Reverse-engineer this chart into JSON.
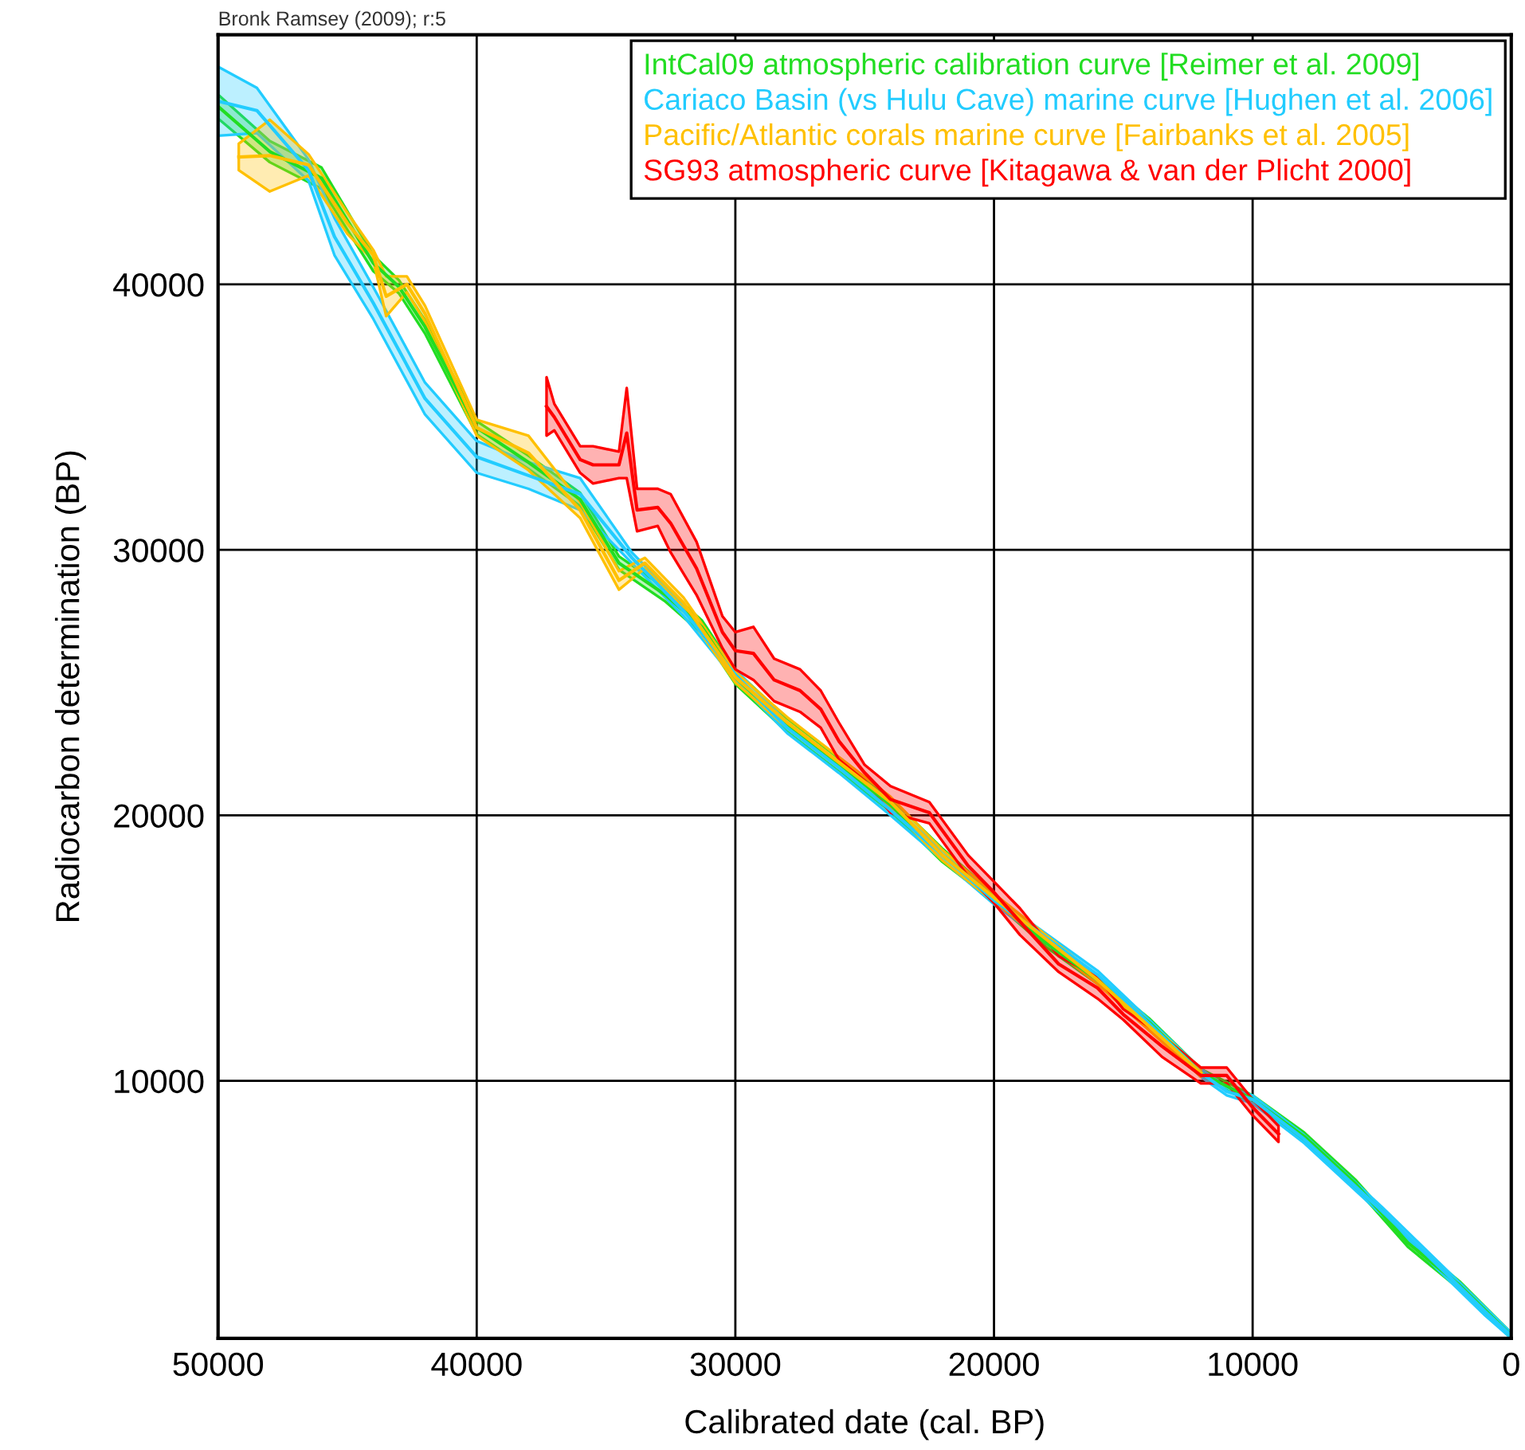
{
  "chart_data": {
    "type": "line",
    "xlabel": "Calibrated date (cal. BP)",
    "ylabel": "Radiocarbon determination (BP)",
    "annotations": [
      "Bronk Ramsey (2009); r:5"
    ],
    "xlim": [
      50000,
      0
    ],
    "ylim": [
      300,
      49400
    ],
    "xticks": [
      50000,
      40000,
      30000,
      20000,
      10000,
      0
    ],
    "yticks": [
      10000,
      20000,
      30000,
      40000
    ],
    "grid": true,
    "legend": "top right",
    "marker": "none",
    "line_style": "solid",
    "series": [
      {
        "name": "IntCal09 atmospheric calibration curve [Reimer et al. 2009]",
        "color": "#22dd22",
        "x": [
          50000,
          48000,
          46000,
          44000,
          43000,
          42000,
          40000,
          38000,
          36000,
          34500,
          32700,
          31300,
          30000,
          28000,
          26000,
          24000,
          22000,
          20000,
          18000,
          16000,
          14000,
          12000,
          10000,
          8000,
          6000,
          4000,
          2000,
          0
        ],
        "values": [
          46700,
          45000,
          44000,
          40800,
          39900,
          38400,
          34600,
          33300,
          31900,
          29500,
          28300,
          27100,
          25200,
          23400,
          21900,
          20400,
          18500,
          16900,
          15200,
          13800,
          12200,
          10300,
          9300,
          7900,
          6100,
          3900,
          2300,
          400
        ],
        "lower": [
          46250,
          44600,
          43600,
          40500,
          39650,
          38150,
          34350,
          33050,
          31650,
          29250,
          28050,
          26850,
          24950,
          23150,
          21650,
          20150,
          18250,
          16750,
          15050,
          13650,
          12050,
          10150,
          9150,
          7750,
          5950,
          3750,
          2150,
          300
        ],
        "upper": [
          47150,
          45400,
          44400,
          41100,
          40150,
          38650,
          34850,
          33550,
          32150,
          29750,
          28550,
          27350,
          25450,
          23650,
          22150,
          20650,
          18750,
          17050,
          15350,
          13950,
          12350,
          10450,
          9450,
          8050,
          6250,
          4050,
          2450,
          500
        ]
      },
      {
        "name": "Cariaco Basin (vs Hulu Cave) marine curve [Hughen et al. 2006]",
        "color": "#22ccff",
        "x": [
          50000,
          48500,
          46500,
          45500,
          44000,
          42000,
          40000,
          38000,
          36000,
          34000,
          32000,
          30000,
          28000,
          26000,
          24000,
          20000,
          16000,
          12000,
          11000,
          10000,
          8000,
          5000,
          3000,
          1000,
          0
        ],
        "values": [
          46900,
          46550,
          44300,
          41800,
          39300,
          35700,
          33500,
          32800,
          32100,
          29700,
          27700,
          25300,
          23300,
          21800,
          20200,
          16800,
          14000,
          10300,
          9600,
          9300,
          7800,
          5100,
          3200,
          1300,
          400
        ],
        "lower": [
          45600,
          45700,
          43900,
          41100,
          38700,
          35100,
          32900,
          32300,
          31500,
          29500,
          27500,
          25100,
          23100,
          21600,
          20000,
          16650,
          13850,
          10150,
          9450,
          9150,
          7650,
          4950,
          3050,
          1150,
          300
        ],
        "upper": [
          48200,
          47400,
          44700,
          42500,
          39900,
          36300,
          34100,
          33300,
          32700,
          29900,
          27900,
          25500,
          23500,
          22000,
          20400,
          16950,
          14150,
          10450,
          9750,
          9450,
          7950,
          5250,
          3350,
          1450,
          500
        ]
      },
      {
        "name": "Pacific/Atlantic corals marine curve [Fairbanks et al. 2005]",
        "color": "#ffc000",
        "x": [
          49200,
          48000,
          46500,
          45000,
          44000,
          43500,
          42700,
          42000,
          40000,
          38000,
          36000,
          34500,
          33500,
          32000,
          30000,
          28000,
          26000,
          24000,
          22000,
          20000,
          16000,
          12000
        ],
        "values": [
          44800,
          44850,
          44500,
          42300,
          41100,
          39550,
          40000,
          38900,
          34600,
          33650,
          31500,
          28850,
          29500,
          28000,
          25200,
          23500,
          22000,
          20500,
          18500,
          16900,
          13800,
          10300
        ],
        "lower": [
          44300,
          43500,
          44100,
          41900,
          40900,
          38800,
          39700,
          38600,
          34300,
          33000,
          31200,
          28500,
          29300,
          27800,
          25000,
          23300,
          21800,
          20300,
          18300,
          16750,
          13650,
          10150
        ],
        "upper": [
          45300,
          46200,
          44900,
          42700,
          41300,
          40300,
          40300,
          39200,
          34900,
          34300,
          31800,
          29200,
          29700,
          28200,
          25400,
          23700,
          22200,
          20700,
          18700,
          17050,
          13950,
          10450
        ]
      },
      {
        "name": "SG93 atmospheric curve [Kitagawa & van der Plicht 2000]",
        "color": "#ff0000",
        "x": [
          37300,
          37000,
          36000,
          35500,
          34500,
          34200,
          33800,
          33000,
          32500,
          31500,
          30500,
          30000,
          29300,
          28500,
          27500,
          26700,
          26000,
          25000,
          24000,
          22500,
          21000,
          20000,
          19000,
          17500,
          16000,
          15000,
          13500,
          12000,
          11000,
          10000,
          9000
        ],
        "values": [
          35400,
          35000,
          33400,
          33200,
          33200,
          34400,
          31500,
          31600,
          31000,
          29300,
          26900,
          26200,
          26100,
          25100,
          24700,
          24000,
          22800,
          21600,
          20600,
          20100,
          18100,
          17100,
          16000,
          14400,
          13500,
          12500,
          11300,
          10200,
          10200,
          9000,
          8000
        ],
        "lower": [
          34300,
          34500,
          32900,
          32500,
          32700,
          32700,
          30700,
          30900,
          29900,
          28300,
          26300,
          25500,
          25100,
          24300,
          23900,
          23300,
          22100,
          21300,
          20100,
          19700,
          17700,
          16700,
          15500,
          14100,
          13100,
          12300,
          10900,
          9900,
          9900,
          8700,
          7700
        ],
        "upper": [
          36500,
          35500,
          33900,
          33900,
          33700,
          36100,
          32300,
          32300,
          32100,
          30300,
          27500,
          26900,
          27100,
          25900,
          25500,
          24700,
          23500,
          21900,
          21100,
          20500,
          18500,
          17500,
          16500,
          14700,
          13900,
          12700,
          11700,
          10500,
          10500,
          9300,
          8300
        ]
      }
    ]
  }
}
